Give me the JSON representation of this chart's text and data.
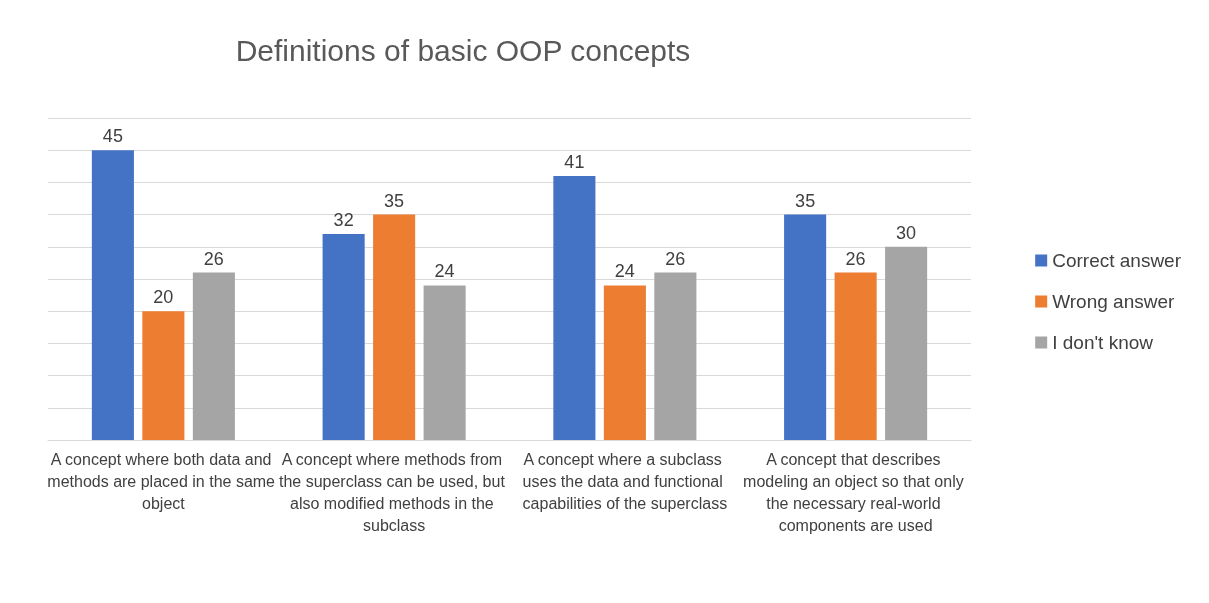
{
  "chart_data": {
    "type": "bar",
    "title": "Definitions of basic OOP concepts",
    "categories": [
      "A concept where both data and methods are placed in the same object",
      "A concept where methods from the superclass can be used, but also modified methods in the subclass",
      "A concept where a subclass uses the data and functional capabilities of the superclass",
      "A concept that describes modeling an object so that only the necessary real-world components are used"
    ],
    "series": [
      {
        "name": "Correct answer",
        "color": "#4472c4",
        "values": [
          45,
          32,
          41,
          35
        ]
      },
      {
        "name": "Wrong answer",
        "color": "#ed7d31",
        "values": [
          20,
          35,
          24,
          26
        ]
      },
      {
        "name": "I don't know",
        "color": "#a5a5a5",
        "values": [
          26,
          24,
          26,
          30
        ]
      }
    ],
    "ylim": [
      0,
      50
    ],
    "yticks": [
      {
        "value": 0,
        "label": null
      },
      {
        "value": 5,
        "label": null
      },
      {
        "value": 10,
        "label": null
      },
      {
        "value": 15,
        "label": null
      },
      {
        "value": 20,
        "label": null
      },
      {
        "value": 25,
        "label": null
      },
      {
        "value": 30,
        "label": null
      },
      {
        "value": 35,
        "label": null
      },
      {
        "value": 40,
        "label": null
      },
      {
        "value": 45,
        "label": null
      },
      {
        "value": 50,
        "label": null
      }
    ],
    "tick_labels": "x",
    "grid": "y",
    "legend": "right",
    "data_labels": true
  }
}
